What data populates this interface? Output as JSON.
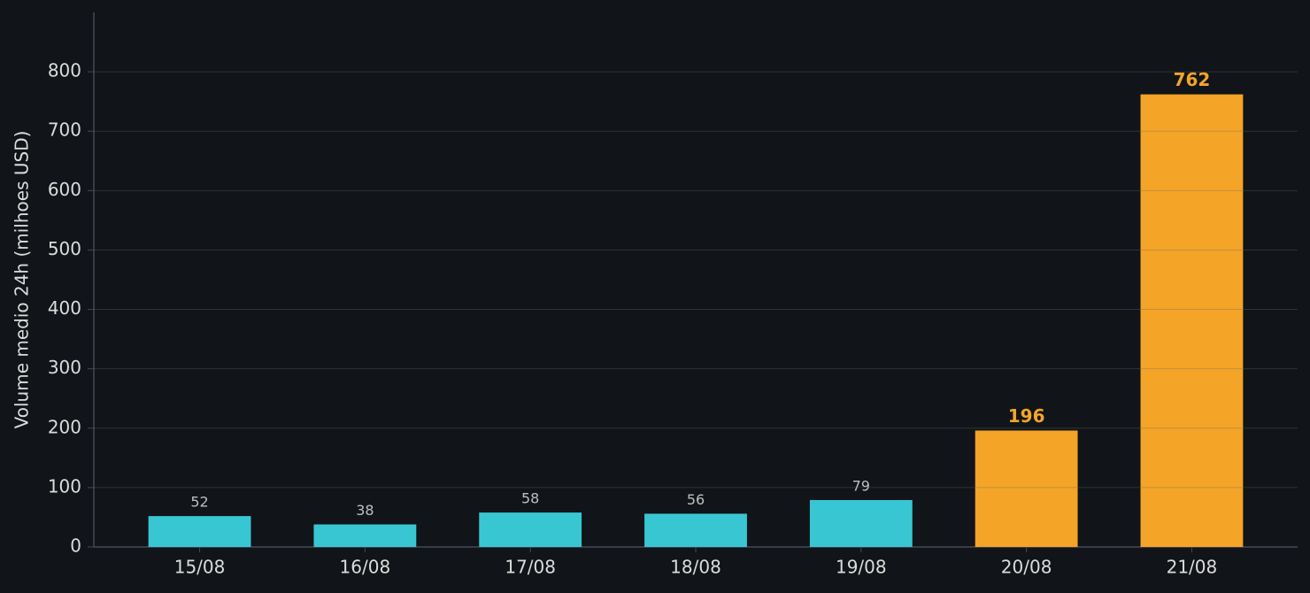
{
  "chart_data": {
    "type": "bar",
    "y_label": "Volume medio 24h (milhoes USD)",
    "categories": [
      "15/08",
      "16/08",
      "17/08",
      "18/08",
      "19/08",
      "20/08",
      "21/08"
    ],
    "values": [
      52,
      38,
      58,
      56,
      79,
      196,
      762
    ],
    "colors": [
      "#39c6d3",
      "#39c6d3",
      "#39c6d3",
      "#39c6d3",
      "#39c6d3",
      "#f4a427",
      "#f4a427"
    ],
    "ylim": [
      0,
      900
    ],
    "yticks": [
      0,
      100,
      200,
      300,
      400,
      500,
      600,
      700,
      800
    ],
    "grid": true
  }
}
